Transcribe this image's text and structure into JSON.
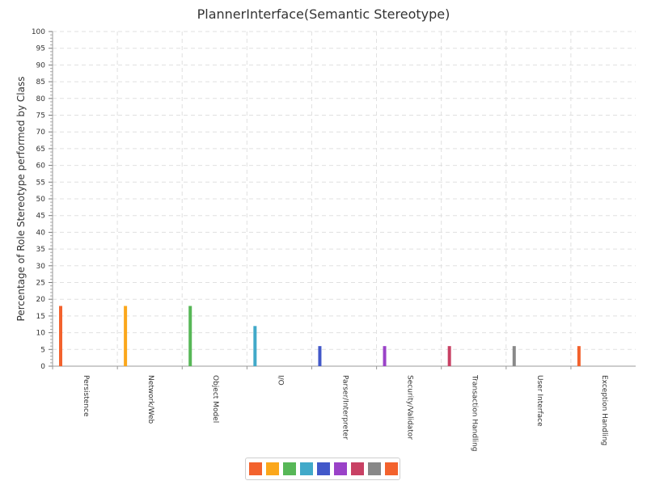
{
  "chart_data": {
    "type": "bar",
    "title": "PlannerInterface(Semantic Stereotype)",
    "xlabel": "",
    "ylabel": "Percentage of Role Stereotype performed by Class",
    "ylim": [
      0,
      100
    ],
    "ytick_step": 5,
    "grid": true,
    "legend": "bottom-center",
    "categories": [
      "Persistence",
      "Network/Web",
      "Object Model",
      "I/O",
      "Parser/Interpreter",
      "Security/Validator",
      "Transaction Handling",
      "User Interface",
      "Exception Handling"
    ],
    "values": [
      18,
      18,
      18,
      12,
      6,
      6,
      6,
      6,
      6
    ],
    "colors": [
      "#f3622d",
      "#fba71b",
      "#57b757",
      "#41a9c9",
      "#4258c9",
      "#9a42c8",
      "#c84164",
      "#888888",
      "#f3622d"
    ]
  }
}
